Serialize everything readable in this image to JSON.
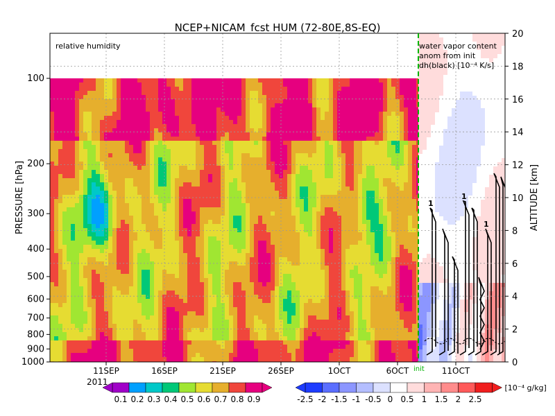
{
  "chart_data": {
    "type": "heatmap",
    "title": "NCEP+NICAM_fcst HUM (72-80E,8S-EQ)",
    "left_panel_label": "relative humidity",
    "right_panel_label_lines": [
      "water vapor content",
      "anom from init",
      "dh(black) [10⁻⁴ K/s]"
    ],
    "ylabel_left": "PRESSURE [hPa]",
    "ylabel_right": "ALTITUDE [km]",
    "year_label": "2011",
    "init_label": "init",
    "pressure_ticks": [
      "100",
      "200",
      "300",
      "400",
      "500",
      "600",
      "700",
      "800",
      "900",
      "1000"
    ],
    "pressure_values": [
      100,
      200,
      300,
      400,
      500,
      600,
      700,
      800,
      900,
      1000
    ],
    "altitude_ticks": [
      "0",
      "2",
      "4",
      "6",
      "8",
      "10",
      "12",
      "14",
      "16",
      "18",
      "20"
    ],
    "altitude_values": [
      0,
      2,
      4,
      6,
      8,
      10,
      12,
      14,
      16,
      18,
      20
    ],
    "time_ticks": [
      "11SEP",
      "16SEP",
      "21SEP",
      "26SEP",
      "1OCT",
      "6OCT",
      "11OCT"
    ],
    "contour_label": "1",
    "rh_colorbar": {
      "labels": [
        "0.1",
        "0.2",
        "0.3",
        "0.4",
        "0.5",
        "0.6",
        "0.7",
        "0.8",
        "0.9"
      ],
      "colors": [
        "#a000c8",
        "#00a0ff",
        "#00c8c8",
        "#00c878",
        "#a0e632",
        "#e6dc32",
        "#e6af2d",
        "#f0463c",
        "#e6007f"
      ]
    },
    "anom_colorbar": {
      "labels": [
        "-2.5",
        "-2",
        "-1.5",
        "-1",
        "-0.5",
        "0",
        "0.5",
        "1",
        "1.5",
        "2",
        "2.5"
      ],
      "unit": "[10⁻⁴ g/kg]",
      "colors": [
        "#1e3cff",
        "#5a6eff",
        "#8c96ff",
        "#b4beff",
        "#dce1ff",
        "#ffffff",
        "#ffdcdc",
        "#ffb4b4",
        "#ff8c8c",
        "#ff5a5a",
        "#f01e1e"
      ]
    }
  }
}
